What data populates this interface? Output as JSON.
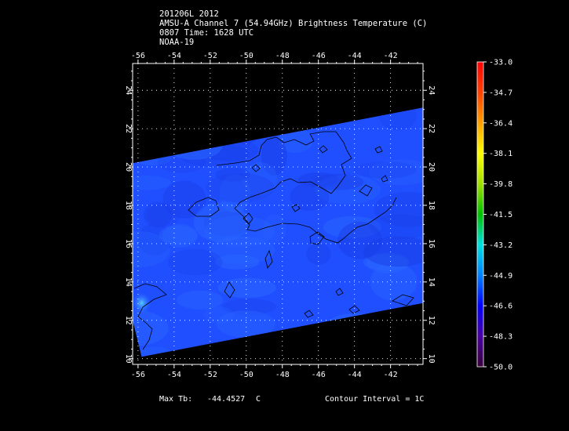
{
  "header": {
    "line1": "201206L 2012",
    "line2": "AMSU-A Channel 7 (54.94GHz) Brightness Temperature (C)",
    "line3": "0807 Time: 1628 UTC",
    "line4": "NOAA-19"
  },
  "footer": {
    "max_label": "Max Tb:",
    "max_value": "-44.4527",
    "max_unit": "C",
    "contour_interval": "Contour Interval = 1C"
  },
  "chart_data": {
    "type": "heatmap",
    "title": "AMSU-A Channel 7 (54.94GHz) Brightness Temperature (C)",
    "xlabel": "",
    "ylabel": "",
    "xlim": [
      -56.3,
      -40.2
    ],
    "ylim": [
      9.7,
      25.4
    ],
    "x_ticks": [
      -56,
      -54,
      -52,
      -50,
      -48,
      -46,
      -44,
      -42
    ],
    "y_ticks": [
      10,
      12,
      14,
      16,
      18,
      20,
      22,
      24
    ],
    "grid": true,
    "grid_style": "dotted",
    "swath_polygon": [
      [
        -56.3,
        20.2
      ],
      [
        -40.2,
        23.1
      ],
      [
        -40.2,
        12.9
      ],
      [
        -55.8,
        10.1
      ],
      [
        -56.3,
        12.0
      ]
    ],
    "colorbar": {
      "min": -50.0,
      "max": -33.0,
      "tick_labels": [
        "-33.0",
        "-34.7",
        "-36.4",
        "-38.1",
        "-39.8",
        "-41.5",
        "-43.2",
        "-44.9",
        "-46.6",
        "-48.3",
        "-50.0"
      ],
      "colors": [
        "#3a003a",
        "#4a00a0",
        "#0000ff",
        "#0080ff",
        "#00e0e0",
        "#00c000",
        "#a0e000",
        "#ffff00",
        "#ffa000",
        "#ff4000",
        "#ff0000"
      ]
    },
    "max_tb": -44.4527,
    "contour_interval": 1,
    "field_colors": {
      "base": "#1f4fff",
      "light": "#2a66ff",
      "dark": "#1a3ee6",
      "hot": "#38b6ff"
    }
  }
}
